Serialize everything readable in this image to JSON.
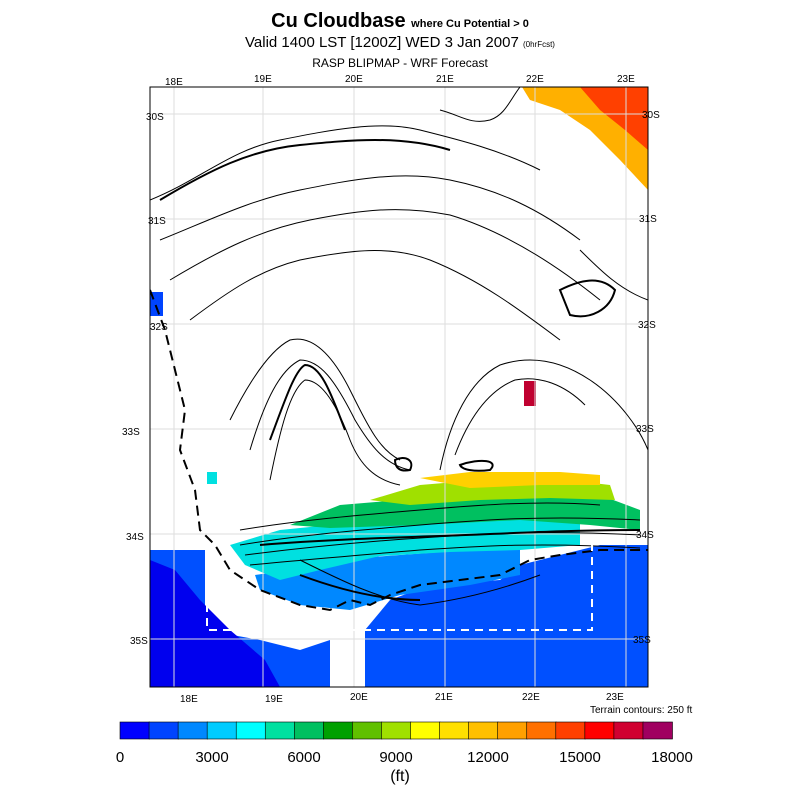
{
  "header": {
    "title": "Cu Cloudbase",
    "title_note": "where Cu Potential > 0",
    "valid": "Valid 1400 LST [1200Z] WED 3 Jan 2007",
    "valid_note": "(0hrFcst)",
    "model": "RASP BLIPMAP - WRF Forecast"
  },
  "map": {
    "top_lon_labels": [
      "18E",
      "19E",
      "20E",
      "21E",
      "22E",
      "23E"
    ],
    "bottom_lon_labels": [
      "18E",
      "19E",
      "20E",
      "21E",
      "22E",
      "23E"
    ],
    "right_lat_labels": [
      "30S",
      "31S",
      "32S",
      "33S",
      "34S",
      "35S"
    ],
    "left_lat_labels": [
      "30S",
      "31S",
      "32S",
      "33S",
      "34S",
      "35S"
    ],
    "terrain_note": "Terrain contours: 250 ft"
  },
  "colorbar": {
    "colors": [
      "#0000ff",
      "#0044ff",
      "#0088ff",
      "#00ccff",
      "#00ffff",
      "#00e0a0",
      "#00c060",
      "#00a000",
      "#60c000",
      "#a0e000",
      "#ffff00",
      "#ffe000",
      "#ffc000",
      "#ffa000",
      "#ff7000",
      "#ff4000",
      "#ff0000",
      "#d00030",
      "#a00060"
    ],
    "labels": [
      "0",
      "3000",
      "6000",
      "9000",
      "12000",
      "15000",
      "18000"
    ],
    "unit": "(ft)"
  }
}
